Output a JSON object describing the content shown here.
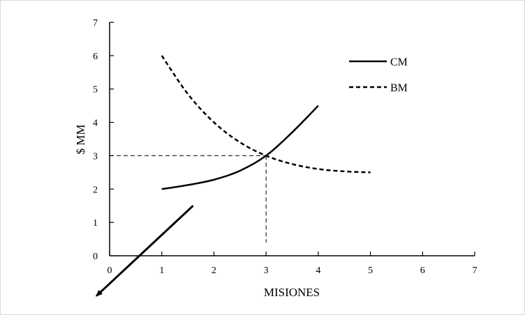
{
  "chart_data": {
    "type": "line",
    "title": "",
    "xlabel": "MISIONES",
    "ylabel": "$ MM",
    "xlim": [
      0,
      7
    ],
    "ylim": [
      0,
      7
    ],
    "x_ticks": [
      "0",
      "1",
      "2",
      "3",
      "4",
      "5",
      "6",
      "7"
    ],
    "y_ticks": [
      "0",
      "1",
      "2",
      "3",
      "4",
      "5",
      "6",
      "7"
    ],
    "grid": false,
    "legend_position": "top-right",
    "series": [
      {
        "name": "CM",
        "style": "solid",
        "x": [
          1,
          1.5,
          2,
          2.5,
          3,
          3.5,
          4
        ],
        "y": [
          2,
          2.12,
          2.28,
          2.55,
          3,
          3.7,
          4.5
        ]
      },
      {
        "name": "BM",
        "style": "dashed",
        "x": [
          1,
          1.5,
          2,
          2.5,
          3,
          3.5,
          4,
          4.5,
          5
        ],
        "y": [
          6,
          4.85,
          4.0,
          3.4,
          3.0,
          2.75,
          2.6,
          2.53,
          2.5
        ]
      }
    ],
    "annotations": {
      "intersection": {
        "x": 3,
        "y": 3
      },
      "arrow": {
        "from": [
          1.6,
          1.5
        ],
        "to": [
          -0.25,
          -1.2
        ]
      }
    },
    "colors": {
      "line": "#000000",
      "axis": "#000000"
    }
  }
}
